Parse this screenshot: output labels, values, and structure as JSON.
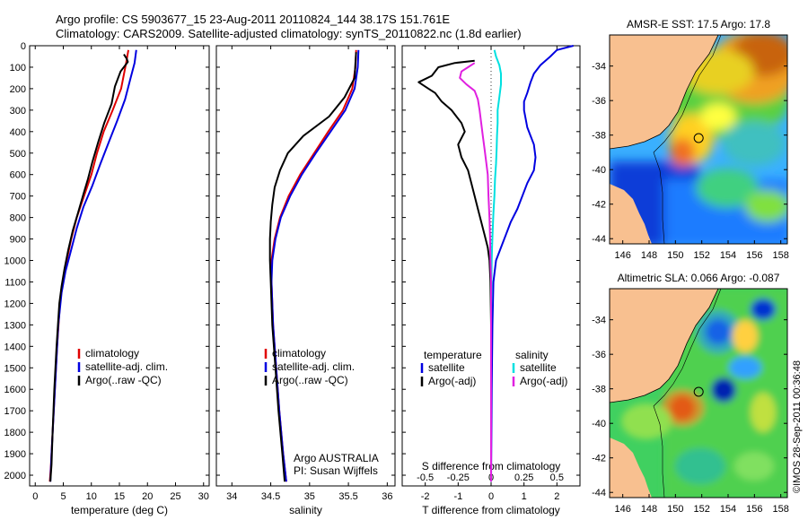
{
  "title_line1": "Argo profile: CS 5903677_15 23-Aug-2011 20110824_144 38.17S 151.761E",
  "title_line2": "Climatology: CARS2009. Satellite-adjusted climatology: synTS_20110822.nc (1.8d earlier)",
  "credit": "©IMOS 28-Sep-2011 00:36:48",
  "colors": {
    "climatology": "#e00000",
    "satellite": "#0000e0",
    "argo": "#000000",
    "sat_salinity": "#00e0e0",
    "argo_salinity": "#e020e0",
    "land": "#f8c090"
  },
  "chart_data": [
    {
      "type": "line",
      "xlabel": "temperature (deg C)",
      "ylim": [
        2050,
        0
      ],
      "xlim": [
        -1,
        31
      ],
      "xticks": [
        "0",
        "5",
        "10",
        "15",
        "20",
        "25",
        "30"
      ],
      "yticks": [
        "0",
        "100",
        "200",
        "300",
        "400",
        "500",
        "600",
        "700",
        "800",
        "900",
        "1000",
        "1100",
        "1200",
        "1300",
        "1400",
        "1500",
        "1600",
        "1700",
        "1800",
        "1900",
        "2000"
      ],
      "legend": [
        "climatology",
        "satellite-adj. clim.",
        "Argo(..raw -QC)"
      ],
      "legend_placement": "lower-middle",
      "series": [
        {
          "name": "climatology",
          "color": "#e00000",
          "points": [
            [
              16.6,
              20
            ],
            [
              16.2,
              80
            ],
            [
              15.3,
              200
            ],
            [
              13.8,
              300
            ],
            [
              12.2,
              400
            ],
            [
              11,
              500
            ],
            [
              10,
              600
            ],
            [
              8.7,
              700
            ],
            [
              7.4,
              800
            ],
            [
              6.4,
              900
            ],
            [
              5.6,
              1000
            ],
            [
              4.9,
              1100
            ],
            [
              4.4,
              1200
            ],
            [
              3.9,
              1400
            ],
            [
              3.5,
              1600
            ],
            [
              3.1,
              1800
            ],
            [
              2.8,
              1950
            ],
            [
              2.6,
              2030
            ]
          ]
        },
        {
          "name": "satellite-adj. clim.",
          "color": "#0000e0",
          "points": [
            [
              18,
              20
            ],
            [
              17.7,
              80
            ],
            [
              17,
              150
            ],
            [
              16,
              250
            ],
            [
              14.6,
              350
            ],
            [
              13.1,
              450
            ],
            [
              11.6,
              550
            ],
            [
              10.2,
              650
            ],
            [
              8.6,
              750
            ],
            [
              7.4,
              850
            ],
            [
              6.4,
              950
            ],
            [
              5.4,
              1050
            ],
            [
              4.7,
              1150
            ],
            [
              4.1,
              1300
            ],
            [
              3.7,
              1500
            ],
            [
              3.3,
              1700
            ],
            [
              2.9,
              1900
            ],
            [
              2.7,
              2030
            ]
          ]
        },
        {
          "name": "Argo(..raw -QC)",
          "color": "#000000",
          "points": [
            [
              15.8,
              40
            ],
            [
              16.3,
              60
            ],
            [
              16.5,
              75
            ],
            [
              15.2,
              120
            ],
            [
              14.2,
              190
            ],
            [
              13.6,
              270
            ],
            [
              12.3,
              360
            ],
            [
              11.2,
              450
            ],
            [
              10.2,
              540
            ],
            [
              9.4,
              620
            ],
            [
              8.6,
              690
            ],
            [
              7.6,
              780
            ],
            [
              6.7,
              860
            ],
            [
              5.9,
              950
            ],
            [
              5.2,
              1040
            ],
            [
              4.7,
              1120
            ],
            [
              4.3,
              1200
            ],
            [
              3.8,
              1400
            ],
            [
              3.4,
              1600
            ],
            [
              3.1,
              1800
            ],
            [
              2.9,
              1950
            ],
            [
              2.7,
              2030
            ]
          ]
        }
      ]
    },
    {
      "type": "line",
      "xlabel": "salinity",
      "ylim": [
        2050,
        0
      ],
      "xlim": [
        33.8,
        36.1
      ],
      "xticks": [
        "34",
        "34.5",
        "35",
        "35.5",
        "36"
      ],
      "legend": [
        "climatology",
        "satellite-adj. clim.",
        "Argo(..raw -QC)"
      ],
      "legend_placement": "lower-middle",
      "annotation": [
        "Argo AUSTRALIA",
        "PI: Susan Wijffels"
      ],
      "series": [
        {
          "name": "climatology",
          "color": "#e00000",
          "points": [
            [
              35.6,
              20
            ],
            [
              35.59,
              100
            ],
            [
              35.55,
              200
            ],
            [
              35.43,
              300
            ],
            [
              35.24,
              400
            ],
            [
              35.06,
              500
            ],
            [
              34.88,
              600
            ],
            [
              34.73,
              700
            ],
            [
              34.62,
              800
            ],
            [
              34.55,
              900
            ],
            [
              34.51,
              1000
            ],
            [
              34.51,
              1100
            ],
            [
              34.53,
              1300
            ],
            [
              34.57,
              1500
            ],
            [
              34.61,
              1700
            ],
            [
              34.66,
              1900
            ],
            [
              34.7,
              2030
            ]
          ]
        },
        {
          "name": "satellite-adj. clim.",
          "color": "#0000e0",
          "points": [
            [
              35.63,
              20
            ],
            [
              35.62,
              100
            ],
            [
              35.58,
              200
            ],
            [
              35.46,
              300
            ],
            [
              35.27,
              400
            ],
            [
              35.08,
              500
            ],
            [
              34.9,
              600
            ],
            [
              34.75,
              700
            ],
            [
              34.63,
              800
            ],
            [
              34.56,
              900
            ],
            [
              34.52,
              1000
            ],
            [
              34.51,
              1100
            ],
            [
              34.53,
              1300
            ],
            [
              34.57,
              1500
            ],
            [
              34.61,
              1700
            ],
            [
              34.66,
              1900
            ],
            [
              34.7,
              2030
            ]
          ]
        },
        {
          "name": "Argo(..raw -QC)",
          "color": "#000000",
          "points": [
            [
              35.6,
              30
            ],
            [
              35.59,
              80
            ],
            [
              35.58,
              150
            ],
            [
              35.45,
              240
            ],
            [
              35.25,
              330
            ],
            [
              34.92,
              420
            ],
            [
              34.72,
              500
            ],
            [
              34.62,
              580
            ],
            [
              34.55,
              660
            ],
            [
              34.52,
              740
            ],
            [
              34.5,
              820
            ],
            [
              34.49,
              900
            ],
            [
              34.49,
              1000
            ],
            [
              34.5,
              1100
            ],
            [
              34.52,
              1300
            ],
            [
              34.56,
              1500
            ],
            [
              34.6,
              1700
            ],
            [
              34.65,
              1900
            ],
            [
              34.68,
              2030
            ]
          ]
        }
      ]
    },
    {
      "type": "line",
      "xlabel": "T difference from climatology",
      "xlabel2": "S difference from climatology",
      "ylim": [
        2050,
        0
      ],
      "xlim": [
        -2.7,
        2.7
      ],
      "xticks": [
        "-2",
        "-1",
        "0",
        "1",
        "2"
      ],
      "xticks2": [
        "-0.5",
        "-0.25",
        "0",
        "0.25",
        "0.5"
      ],
      "legend": [
        "temperature",
        "satellite",
        "Argo(-adj)",
        "salinity",
        "satellite",
        "Argo(-adj)"
      ],
      "legend_placement": "lower-middle",
      "series": [
        {
          "name": "satellite",
          "color": "#0000e0",
          "points": [
            [
              2.5,
              0
            ],
            [
              2,
              20
            ],
            [
              1.8,
              50
            ],
            [
              1.5,
              90
            ],
            [
              1.3,
              130
            ],
            [
              1.2,
              170
            ],
            [
              1.1,
              220
            ],
            [
              1,
              260
            ],
            [
              1,
              300
            ],
            [
              1.05,
              340
            ],
            [
              1.1,
              380
            ],
            [
              1.2,
              420
            ],
            [
              1.3,
              460
            ],
            [
              1.35,
              520
            ],
            [
              1.3,
              580
            ],
            [
              1.1,
              640
            ],
            [
              0.95,
              700
            ],
            [
              0.8,
              760
            ],
            [
              0.6,
              820
            ],
            [
              0.45,
              880
            ],
            [
              0.3,
              940
            ],
            [
              0.15,
              1000
            ],
            [
              0.07,
              1100
            ],
            [
              0.04,
              1300
            ],
            [
              0.02,
              1600
            ],
            [
              0,
              2030
            ]
          ]
        },
        {
          "name": "Argo(-adj)",
          "color": "#000000",
          "points": [
            [
              -0.5,
              70
            ],
            [
              -1.1,
              80
            ],
            [
              -1.6,
              100
            ],
            [
              -1.8,
              140
            ],
            [
              -2.2,
              170
            ],
            [
              -1.9,
              200
            ],
            [
              -1.7,
              220
            ],
            [
              -1.5,
              260
            ],
            [
              -1.2,
              300
            ],
            [
              -0.9,
              360
            ],
            [
              -0.8,
              400
            ],
            [
              -1,
              460
            ],
            [
              -0.9,
              520
            ],
            [
              -0.7,
              580
            ],
            [
              -0.6,
              640
            ],
            [
              -0.5,
              700
            ],
            [
              -0.4,
              760
            ],
            [
              -0.3,
              820
            ],
            [
              -0.2,
              880
            ],
            [
              -0.1,
              940
            ],
            [
              -0.05,
              1000
            ],
            [
              -0.02,
              1100
            ],
            [
              0,
              1300
            ],
            [
              0,
              2030
            ]
          ]
        },
        {
          "name": "satellite",
          "color": "#00e0e0",
          "points": [
            [
              0.1,
              20
            ],
            [
              0.15,
              50
            ],
            [
              0.25,
              90
            ],
            [
              0.3,
              130
            ],
            [
              0.3,
              180
            ],
            [
              0.25,
              240
            ],
            [
              0.2,
              300
            ],
            [
              0.2,
              360
            ],
            [
              0.18,
              420
            ],
            [
              0.17,
              480
            ],
            [
              0.15,
              550
            ],
            [
              0.12,
              620
            ],
            [
              0.1,
              700
            ],
            [
              0.07,
              780
            ],
            [
              0.05,
              860
            ],
            [
              0.03,
              940
            ],
            [
              0.02,
              1000
            ],
            [
              0.01,
              1100
            ],
            [
              0,
              1300
            ],
            [
              0,
              2030
            ]
          ]
        },
        {
          "name": "Argo(-adj)",
          "color": "#e020e0",
          "points": [
            [
              -0.5,
              80
            ],
            [
              -0.7,
              100
            ],
            [
              -0.9,
              120
            ],
            [
              -0.95,
              150
            ],
            [
              -0.75,
              180
            ],
            [
              -0.5,
              210
            ],
            [
              -0.4,
              250
            ],
            [
              -0.35,
              300
            ],
            [
              -0.3,
              360
            ],
            [
              -0.25,
              420
            ],
            [
              -0.2,
              480
            ],
            [
              -0.15,
              540
            ],
            [
              -0.1,
              600
            ],
            [
              -0.08,
              700
            ],
            [
              -0.05,
              800
            ],
            [
              -0.03,
              900
            ],
            [
              -0.02,
              1000
            ],
            [
              0,
              1100
            ],
            [
              0,
              2030
            ]
          ]
        }
      ]
    },
    {
      "type": "heatmap",
      "title": "AMSR-E SST: 17.5 Argo: 17.8",
      "xticks": [
        "146",
        "148",
        "150",
        "152",
        "154",
        "156",
        "158"
      ],
      "yticks": [
        "-34",
        "-36",
        "-38",
        "-40",
        "-42",
        "-44"
      ],
      "xlim": [
        145,
        158.5
      ],
      "ylim": [
        -44.3,
        -32.2
      ],
      "marker": {
        "lon": 151.761,
        "lat": -38.17
      }
    },
    {
      "type": "heatmap",
      "title": "Altimetric SLA: 0.066 Argo: -0.087",
      "xticks": [
        "146",
        "148",
        "150",
        "152",
        "154",
        "156",
        "158"
      ],
      "yticks": [
        "-34",
        "-36",
        "-38",
        "-40",
        "-42",
        "-44"
      ],
      "xlim": [
        145,
        158.5
      ],
      "ylim": [
        -44.3,
        -32.2
      ],
      "marker": {
        "lon": 151.761,
        "lat": -38.17
      }
    }
  ]
}
